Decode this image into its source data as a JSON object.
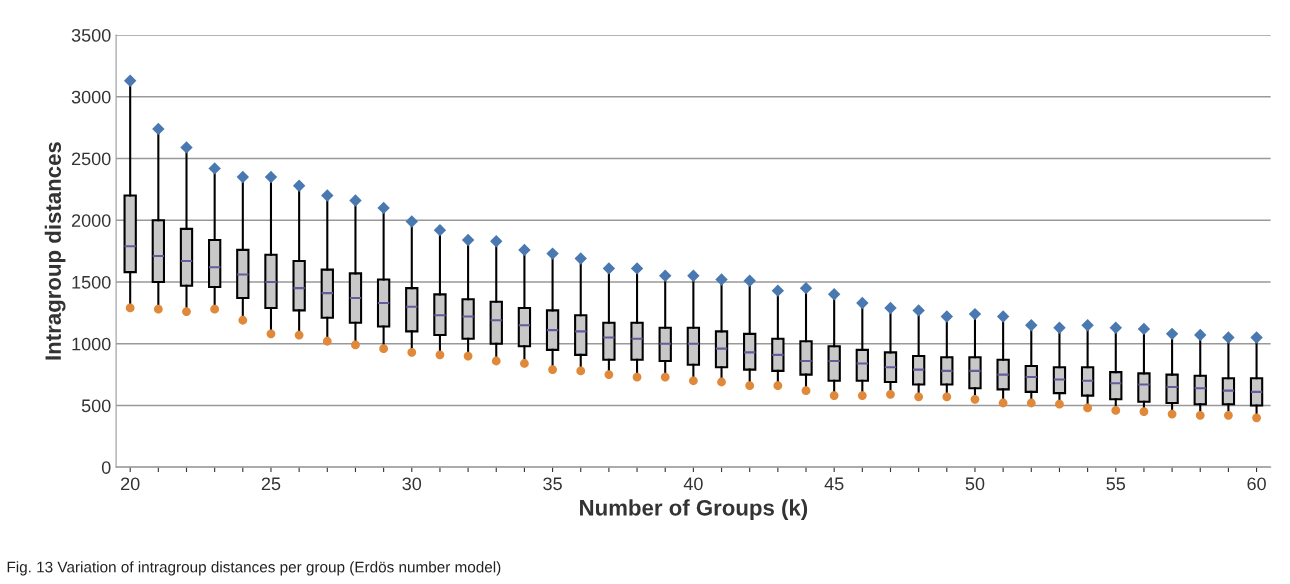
{
  "chart_data": {
    "type": "box",
    "xlabel": "Number of Groups (k)",
    "ylabel": "Intragroup distances",
    "annotations": [
      "Fig. 13 Variation of intragroup distances per group (Erdös number model)"
    ],
    "categories": [
      "20",
      null,
      null,
      null,
      null,
      "25",
      null,
      null,
      null,
      null,
      "30",
      null,
      null,
      null,
      null,
      "35",
      null,
      null,
      null,
      null,
      "40",
      null,
      null,
      null,
      null,
      "45",
      null,
      null,
      null,
      null,
      "50",
      null,
      null,
      null,
      null,
      "55",
      null,
      null,
      null,
      null,
      "60"
    ],
    "ylim": [
      0,
      3500
    ],
    "yticks": [
      0,
      500,
      1000,
      1500,
      2000,
      2500,
      3000,
      3500
    ],
    "grid": "y",
    "color": "#c8c8c8",
    "boxes": [
      {
        "low": 1290,
        "q1": 1580,
        "median": 1790,
        "q3": 2200,
        "high": 3130
      },
      {
        "low": 1280,
        "q1": 1500,
        "median": 1710,
        "q3": 2000,
        "high": 2740
      },
      {
        "low": 1260,
        "q1": 1470,
        "median": 1670,
        "q3": 1930,
        "high": 2590
      },
      {
        "low": 1280,
        "q1": 1460,
        "median": 1620,
        "q3": 1840,
        "high": 2420
      },
      {
        "low": 1190,
        "q1": 1370,
        "median": 1560,
        "q3": 1760,
        "high": 2350
      },
      {
        "low": 1080,
        "q1": 1290,
        "median": 1500,
        "q3": 1720,
        "high": 2350
      },
      {
        "low": 1070,
        "q1": 1270,
        "median": 1450,
        "q3": 1670,
        "high": 2280
      },
      {
        "low": 1020,
        "q1": 1210,
        "median": 1410,
        "q3": 1600,
        "high": 2200
      },
      {
        "low": 990,
        "q1": 1170,
        "median": 1370,
        "q3": 1570,
        "high": 2160
      },
      {
        "low": 960,
        "q1": 1140,
        "median": 1330,
        "q3": 1520,
        "high": 2100
      },
      {
        "low": 930,
        "q1": 1100,
        "median": 1300,
        "q3": 1450,
        "high": 1990
      },
      {
        "low": 910,
        "q1": 1070,
        "median": 1230,
        "q3": 1400,
        "high": 1920
      },
      {
        "low": 900,
        "q1": 1040,
        "median": 1220,
        "q3": 1360,
        "high": 1840
      },
      {
        "low": 860,
        "q1": 1000,
        "median": 1190,
        "q3": 1340,
        "high": 1830
      },
      {
        "low": 840,
        "q1": 980,
        "median": 1150,
        "q3": 1290,
        "high": 1760
      },
      {
        "low": 790,
        "q1": 950,
        "median": 1110,
        "q3": 1270,
        "high": 1730
      },
      {
        "low": 780,
        "q1": 910,
        "median": 1100,
        "q3": 1230,
        "high": 1690
      },
      {
        "low": 750,
        "q1": 870,
        "median": 1050,
        "q3": 1170,
        "high": 1610
      },
      {
        "low": 730,
        "q1": 870,
        "median": 1040,
        "q3": 1170,
        "high": 1610
      },
      {
        "low": 730,
        "q1": 860,
        "median": 1000,
        "q3": 1130,
        "high": 1550
      },
      {
        "low": 700,
        "q1": 830,
        "median": 1000,
        "q3": 1130,
        "high": 1550
      },
      {
        "low": 690,
        "q1": 810,
        "median": 960,
        "q3": 1100,
        "high": 1520
      },
      {
        "low": 660,
        "q1": 790,
        "median": 930,
        "q3": 1080,
        "high": 1510
      },
      {
        "low": 660,
        "q1": 780,
        "median": 910,
        "q3": 1040,
        "high": 1430
      },
      {
        "low": 620,
        "q1": 750,
        "median": 860,
        "q3": 1020,
        "high": 1450
      },
      {
        "low": 580,
        "q1": 700,
        "median": 860,
        "q3": 980,
        "high": 1400
      },
      {
        "low": 580,
        "q1": 700,
        "median": 840,
        "q3": 950,
        "high": 1330
      },
      {
        "low": 590,
        "q1": 690,
        "median": 810,
        "q3": 930,
        "high": 1290
      },
      {
        "low": 570,
        "q1": 670,
        "median": 790,
        "q3": 900,
        "high": 1270
      },
      {
        "low": 570,
        "q1": 670,
        "median": 780,
        "q3": 890,
        "high": 1220
      },
      {
        "low": 550,
        "q1": 640,
        "median": 780,
        "q3": 890,
        "high": 1240
      },
      {
        "low": 520,
        "q1": 630,
        "median": 750,
        "q3": 870,
        "high": 1220
      },
      {
        "low": 520,
        "q1": 610,
        "median": 730,
        "q3": 820,
        "high": 1150
      },
      {
        "low": 510,
        "q1": 600,
        "median": 710,
        "q3": 810,
        "high": 1130
      },
      {
        "low": 480,
        "q1": 580,
        "median": 700,
        "q3": 810,
        "high": 1150
      },
      {
        "low": 460,
        "q1": 550,
        "median": 680,
        "q3": 770,
        "high": 1130
      },
      {
        "low": 450,
        "q1": 530,
        "median": 670,
        "q3": 760,
        "high": 1120
      },
      {
        "low": 430,
        "q1": 520,
        "median": 650,
        "q3": 750,
        "high": 1080
      },
      {
        "low": 420,
        "q1": 510,
        "median": 640,
        "q3": 740,
        "high": 1070
      },
      {
        "low": 420,
        "q1": 510,
        "median": 620,
        "q3": 720,
        "high": 1050
      },
      {
        "low": 400,
        "q1": 500,
        "median": 610,
        "q3": 720,
        "high": 1050
      }
    ],
    "series": [
      {
        "type": "scatter",
        "marker": "diamond",
        "color": "#4a78b0",
        "values": [
          3130,
          2740,
          2590,
          2420,
          2350,
          2350,
          2280,
          2200,
          2160,
          2100,
          1990,
          1920,
          1840,
          1830,
          1760,
          1730,
          1690,
          1610,
          1610,
          1550,
          1550,
          1520,
          1510,
          1430,
          1450,
          1400,
          1330,
          1290,
          1270,
          1220,
          1240,
          1220,
          1150,
          1130,
          1150,
          1130,
          1120,
          1080,
          1070,
          1050,
          1050
        ]
      },
      {
        "type": "scatter",
        "marker": "circle",
        "color": "#e0893a",
        "values": [
          1290,
          1280,
          1260,
          1280,
          1190,
          1080,
          1070,
          1020,
          990,
          960,
          930,
          910,
          900,
          860,
          840,
          790,
          780,
          750,
          730,
          730,
          700,
          690,
          660,
          660,
          620,
          580,
          580,
          590,
          570,
          570,
          550,
          520,
          520,
          510,
          480,
          460,
          450,
          430,
          420,
          420,
          400
        ]
      }
    ]
  }
}
